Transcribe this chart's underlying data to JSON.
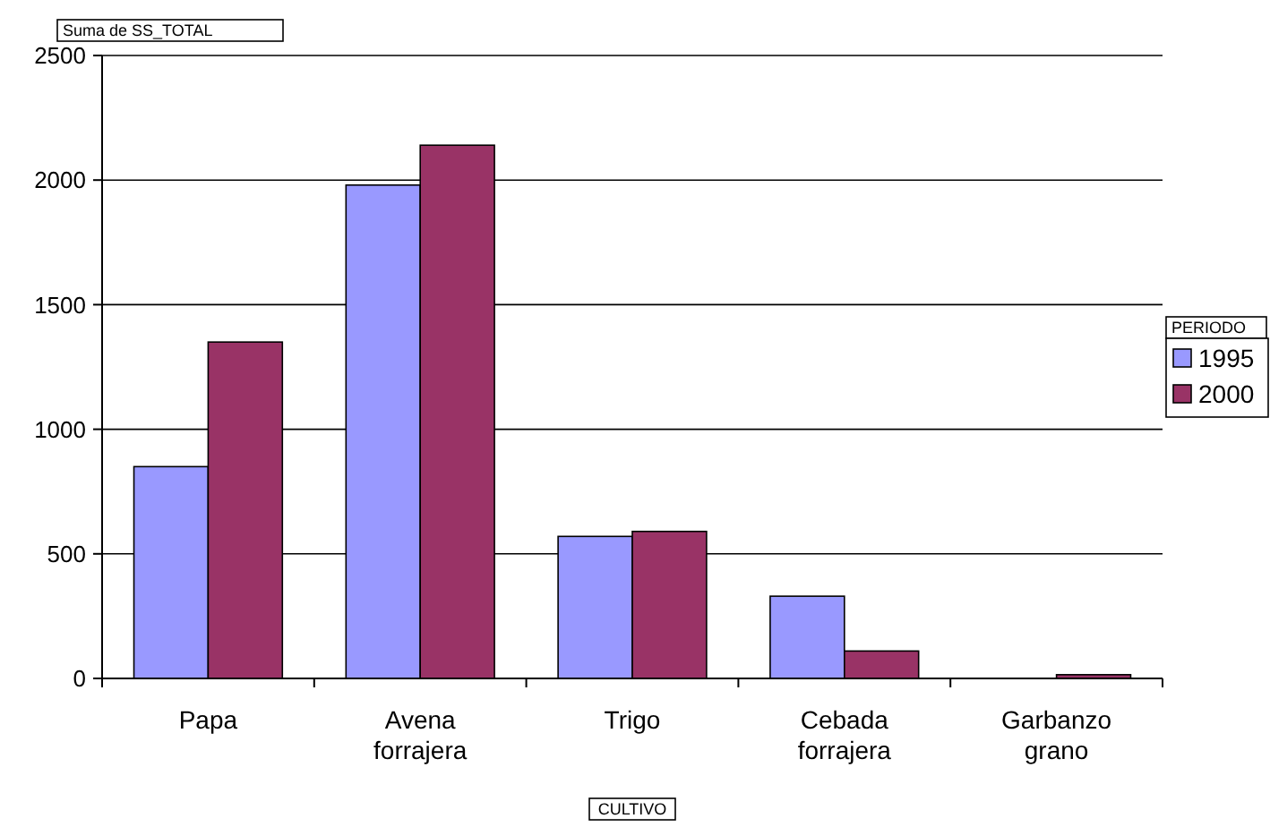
{
  "chart_data": {
    "type": "bar",
    "title": "Suma de SS_TOTAL",
    "xlabel": "CULTIVO",
    "legend_title": "PERIODO",
    "categories": [
      "Papa",
      "Avena forrajera",
      "Trigo",
      "Cebada forrajera",
      "Garbanzo grano"
    ],
    "series": [
      {
        "name": "1995",
        "color": "#9999ff",
        "values": [
          850,
          1980,
          570,
          330,
          0
        ]
      },
      {
        "name": "2000",
        "color": "#993366",
        "values": [
          1350,
          2140,
          590,
          110,
          15
        ]
      }
    ],
    "ylim": [
      0,
      2500
    ],
    "yticks": [
      0,
      500,
      1000,
      1500,
      2000,
      2500
    ],
    "grid": "y",
    "legend": "right"
  }
}
